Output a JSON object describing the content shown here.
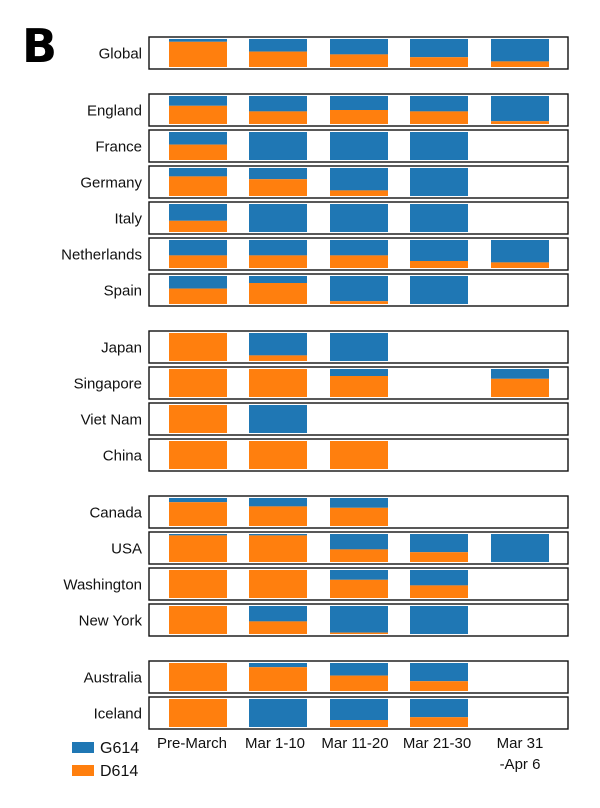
{
  "chart_data": {
    "type": "bar",
    "stacked": true,
    "normalized": true,
    "panel_label": "B",
    "categories": [
      "Pre-March",
      "Mar 1-10",
      "Mar 11-20",
      "Mar 21-30",
      "Mar 31 -Apr 6"
    ],
    "category_labels": [
      [
        "Pre-March"
      ],
      [
        "Mar 1-10"
      ],
      [
        "Mar 11-20"
      ],
      [
        "Mar 21-30"
      ],
      [
        "Mar 31",
        "-Apr 6"
      ]
    ],
    "series": [
      {
        "name": "G614",
        "color": "#1f77b4"
      },
      {
        "name": "D614",
        "color": "#ff7f0e"
      }
    ],
    "legend_position": "bottom-left",
    "groups": [
      {
        "regions": [
          {
            "name": "Global",
            "g614": [
              0.1,
              0.45,
              0.55,
              0.65,
              0.8
            ]
          }
        ]
      },
      {
        "regions": [
          {
            "name": "England",
            "g614": [
              0.35,
              0.55,
              0.5,
              0.55,
              0.9
            ]
          },
          {
            "name": "France",
            "g614": [
              0.45,
              1.0,
              1.0,
              1.0,
              null
            ]
          },
          {
            "name": "Germany",
            "g614": [
              0.3,
              0.4,
              0.8,
              1.0,
              null
            ]
          },
          {
            "name": "Italy",
            "g614": [
              0.6,
              1.0,
              1.0,
              1.0,
              null
            ]
          },
          {
            "name": "Netherlands",
            "g614": [
              0.55,
              0.55,
              0.55,
              0.75,
              0.8
            ]
          },
          {
            "name": "Spain",
            "g614": [
              0.45,
              0.25,
              0.9,
              1.0,
              null
            ]
          }
        ]
      },
      {
        "regions": [
          {
            "name": "Japan",
            "g614": [
              0.0,
              0.8,
              1.0,
              null,
              null
            ]
          },
          {
            "name": "Singapore",
            "g614": [
              0.0,
              0.0,
              0.25,
              null,
              0.35
            ]
          },
          {
            "name": "Viet Nam",
            "g614": [
              0.0,
              1.0,
              null,
              null,
              null
            ]
          },
          {
            "name": "China",
            "g614": [
              0.0,
              0.0,
              0.0,
              null,
              null
            ]
          }
        ]
      },
      {
        "regions": [
          {
            "name": "Canada",
            "g614": [
              0.15,
              0.3,
              0.35,
              null,
              null
            ]
          },
          {
            "name": "USA",
            "g614": [
              0.05,
              0.05,
              0.55,
              0.65,
              1.0
            ]
          },
          {
            "name": "Washington",
            "g614": [
              0.0,
              0.0,
              0.35,
              0.55,
              null
            ]
          },
          {
            "name": "New York",
            "g614": [
              0.0,
              0.55,
              0.95,
              1.0,
              null
            ]
          }
        ]
      },
      {
        "regions": [
          {
            "name": "Australia",
            "g614": [
              0.0,
              0.15,
              0.45,
              0.65,
              null
            ]
          },
          {
            "name": "Iceland",
            "g614": [
              0.0,
              1.0,
              0.75,
              0.65,
              null
            ]
          }
        ]
      }
    ],
    "ylim": [
      0,
      1
    ],
    "grid": false
  }
}
